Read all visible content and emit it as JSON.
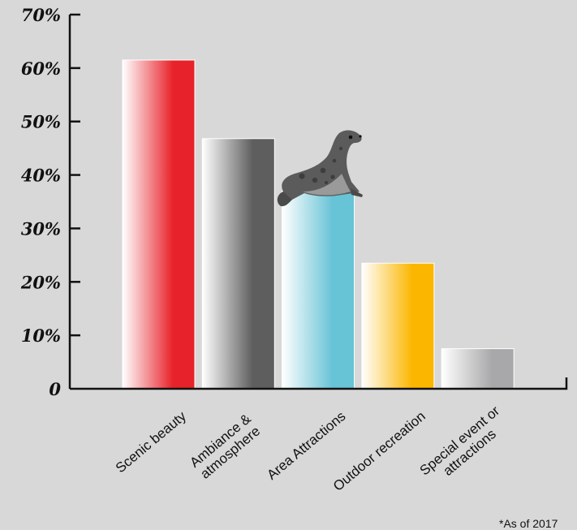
{
  "chart_data": {
    "type": "bar",
    "categories": [
      [
        "Scenic beauty"
      ],
      [
        "Ambiance &",
        "atmosphere"
      ],
      [
        "Area Attractions"
      ],
      [
        "Outdoor recreation"
      ],
      [
        "Special event or",
        "attractions"
      ]
    ],
    "values": [
      61.5,
      46.8,
      37.0,
      23.5,
      7.5
    ],
    "colors": [
      "#e8222a",
      "#5e5e5e",
      "#67c3d6",
      "#fbb600",
      "#a8a8aa"
    ],
    "ylim": [
      0,
      70
    ],
    "yticks": [
      {
        "v": 0,
        "label": "0"
      },
      {
        "v": 10,
        "label": "10%"
      },
      {
        "v": 20,
        "label": "20%"
      },
      {
        "v": 30,
        "label": "30%"
      },
      {
        "v": 40,
        "label": "40%"
      },
      {
        "v": 50,
        "label": "50%"
      },
      {
        "v": 60,
        "label": "60%"
      },
      {
        "v": 70,
        "label": "70%"
      }
    ],
    "grid": false,
    "legend": "none",
    "decoration": "seal-icon"
  },
  "footnote": "*As of 2017"
}
